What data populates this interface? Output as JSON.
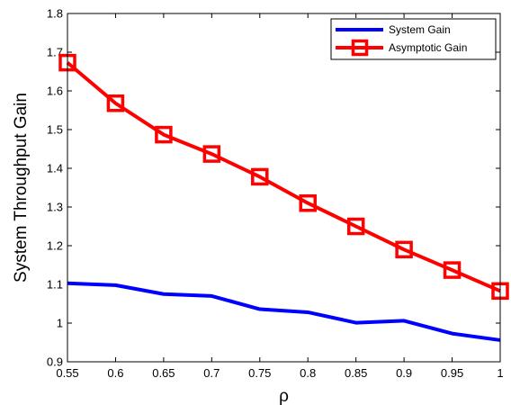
{
  "chart_data": {
    "type": "line",
    "xlabel": "ρ",
    "ylabel": "System Throughput Gain",
    "xlim": [
      0.55,
      1.0
    ],
    "ylim": [
      0.9,
      1.8
    ],
    "grid": false,
    "legend_position": "top-right",
    "x": [
      0.55,
      0.6,
      0.65,
      0.7,
      0.75,
      0.8,
      0.85,
      0.9,
      0.95,
      1.0
    ],
    "x_tick_labels": [
      "0.55",
      "0.6",
      "0.65",
      "0.7",
      "0.75",
      "0.8",
      "0.85",
      "0.9",
      "0.95",
      "1"
    ],
    "y_ticks": [
      0.9,
      1.0,
      1.1,
      1.2,
      1.3,
      1.4,
      1.5,
      1.6,
      1.7,
      1.8
    ],
    "y_tick_labels": [
      "0.9",
      "1",
      "1.1",
      "1.2",
      "1.3",
      "1.4",
      "1.5",
      "1.6",
      "1.7",
      "1.8"
    ],
    "series": [
      {
        "name": "System Gain",
        "color": "#0000ff",
        "marker": "none",
        "values": [
          1.103,
          1.098,
          1.075,
          1.07,
          1.036,
          1.028,
          1.001,
          1.006,
          0.973,
          0.956
        ]
      },
      {
        "name": "Asymptotic Gain",
        "color": "#ff0000",
        "marker": "square",
        "values": [
          1.673,
          1.568,
          1.487,
          1.437,
          1.378,
          1.31,
          1.25,
          1.19,
          1.137,
          1.083
        ]
      }
    ]
  }
}
